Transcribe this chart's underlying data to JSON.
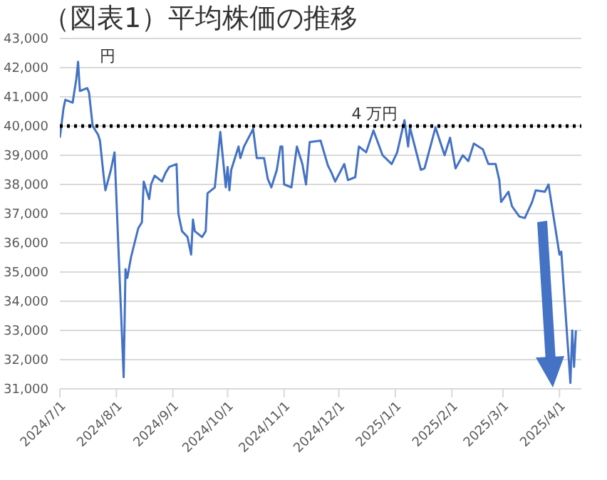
{
  "chart_data": {
    "type": "line",
    "title": "（図表1）平均株価の推移",
    "ylabel": "円",
    "x": [
      "2024-07-01",
      "2024-07-03",
      "2024-07-04",
      "2024-07-08",
      "2024-07-10",
      "2024-07-11",
      "2024-07-12",
      "2024-07-16",
      "2024-07-17",
      "2024-07-19",
      "2024-07-22",
      "2024-07-23",
      "2024-07-25",
      "2024-07-26",
      "2024-07-29",
      "2024-07-31",
      "2024-08-05",
      "2024-08-06",
      "2024-08-07",
      "2024-08-09",
      "2024-08-13",
      "2024-08-15",
      "2024-08-16",
      "2024-08-19",
      "2024-08-20",
      "2024-08-22",
      "2024-08-26",
      "2024-08-28",
      "2024-08-30",
      "2024-09-03",
      "2024-09-04",
      "2024-09-06",
      "2024-09-09",
      "2024-09-11",
      "2024-09-12",
      "2024-09-13",
      "2024-09-17",
      "2024-09-19",
      "2024-09-20",
      "2024-09-24",
      "2024-09-27",
      "2024-09-30",
      "2024-10-01",
      "2024-10-02",
      "2024-10-03",
      "2024-10-07",
      "2024-10-08",
      "2024-10-10",
      "2024-10-15",
      "2024-10-17",
      "2024-10-21",
      "2024-10-23",
      "2024-10-25",
      "2024-10-28",
      "2024-10-30",
      "2024-10-31",
      "2024-11-01",
      "2024-11-05",
      "2024-11-08",
      "2024-11-11",
      "2024-11-13",
      "2024-11-15",
      "2024-11-21",
      "2024-11-25",
      "2024-11-27",
      "2024-11-29",
      "2024-12-04",
      "2024-12-06",
      "2024-12-10",
      "2024-12-12",
      "2024-12-16",
      "2024-12-20",
      "2024-12-25",
      "2024-12-30",
      "2025-01-02",
      "2025-01-06",
      "2025-01-08",
      "2025-01-09",
      "2025-01-15",
      "2025-01-17",
      "2025-01-23",
      "2025-01-28",
      "2025-01-31",
      "2025-02-03",
      "2025-02-07",
      "2025-02-10",
      "2025-02-13",
      "2025-02-18",
      "2025-02-21",
      "2025-02-25",
      "2025-02-27",
      "2025-02-28",
      "2025-03-04",
      "2025-03-06",
      "2025-03-10",
      "2025-03-13",
      "2025-03-17",
      "2025-03-19",
      "2025-03-24",
      "2025-03-26",
      "2025-03-28",
      "2025-04-01",
      "2025-04-02",
      "2025-04-07",
      "2025-04-08",
      "2025-04-09",
      "2025-04-10"
    ],
    "series": [
      {
        "color": "#4472c4",
        "values": [
          39600,
          40600,
          40900,
          40800,
          41600,
          42200,
          41200,
          41300,
          41150,
          40000,
          39700,
          39500,
          38300,
          37800,
          38500,
          39100,
          31400,
          35100,
          34800,
          35500,
          36500,
          36700,
          38100,
          37500,
          38000,
          38300,
          38100,
          38400,
          38600,
          38700,
          37000,
          36400,
          36200,
          35600,
          36800,
          36400,
          36200,
          36400,
          37700,
          37900,
          39800,
          37900,
          38600,
          37800,
          38500,
          39300,
          38900,
          39300,
          39900,
          38900,
          38900,
          38200,
          37900,
          38500,
          39300,
          39300,
          38000,
          37900,
          39300,
          38700,
          38000,
          39450,
          39500,
          38650,
          38400,
          38100,
          38700,
          38150,
          38250,
          39300,
          39100,
          39850,
          39000,
          38700,
          39100,
          40200,
          39300,
          39950,
          38500,
          38550,
          39950,
          39000,
          39600,
          38550,
          39000,
          38800,
          39400,
          39200,
          38700,
          38700,
          38150,
          37400,
          37750,
          37250,
          36900,
          36850,
          37400,
          37800,
          37750,
          38000,
          37200,
          35600,
          35700,
          31200,
          33000,
          31750,
          33000
        ]
      }
    ],
    "xlim": [
      "2024-07-01",
      "2025-04-13"
    ],
    "xticks": [
      {
        "value": "2024-07-01",
        "label": "2024/7/1"
      },
      {
        "value": "2024-08-01",
        "label": "2024/8/1"
      },
      {
        "value": "2024-09-01",
        "label": "2024/9/1"
      },
      {
        "value": "2024-10-01",
        "label": "2024/10/1"
      },
      {
        "value": "2024-11-01",
        "label": "2024/11/1"
      },
      {
        "value": "2024-12-01",
        "label": "2024/12/1"
      },
      {
        "value": "2025-01-01",
        "label": "2025/1/1"
      },
      {
        "value": "2025-02-01",
        "label": "2025/2/1"
      },
      {
        "value": "2025-03-01",
        "label": "2025/3/1"
      },
      {
        "value": "2025-04-01",
        "label": "2025/4/1"
      }
    ],
    "ylim": [
      31000,
      43000
    ],
    "yticks": [
      {
        "value": 31000,
        "label": "31,000"
      },
      {
        "value": 32000,
        "label": "32,000"
      },
      {
        "value": 33000,
        "label": "33,000"
      },
      {
        "value": 34000,
        "label": "34,000"
      },
      {
        "value": 35000,
        "label": "35,000"
      },
      {
        "value": 36000,
        "label": "36,000"
      },
      {
        "value": 37000,
        "label": "37,000"
      },
      {
        "value": 38000,
        "label": "38,000"
      },
      {
        "value": 39000,
        "label": "39,000"
      },
      {
        "value": 40000,
        "label": "40,000"
      },
      {
        "value": 41000,
        "label": "41,000"
      },
      {
        "value": 42000,
        "label": "42,000"
      },
      {
        "value": 43000,
        "label": "43,000"
      }
    ],
    "ref_lines": [
      {
        "axis": "y",
        "value": 40000,
        "label": "4 万円",
        "color": "#000000",
        "line_style": "dotted"
      }
    ],
    "grid": "y",
    "legend": false,
    "marker": "none",
    "line_style": "solid"
  }
}
